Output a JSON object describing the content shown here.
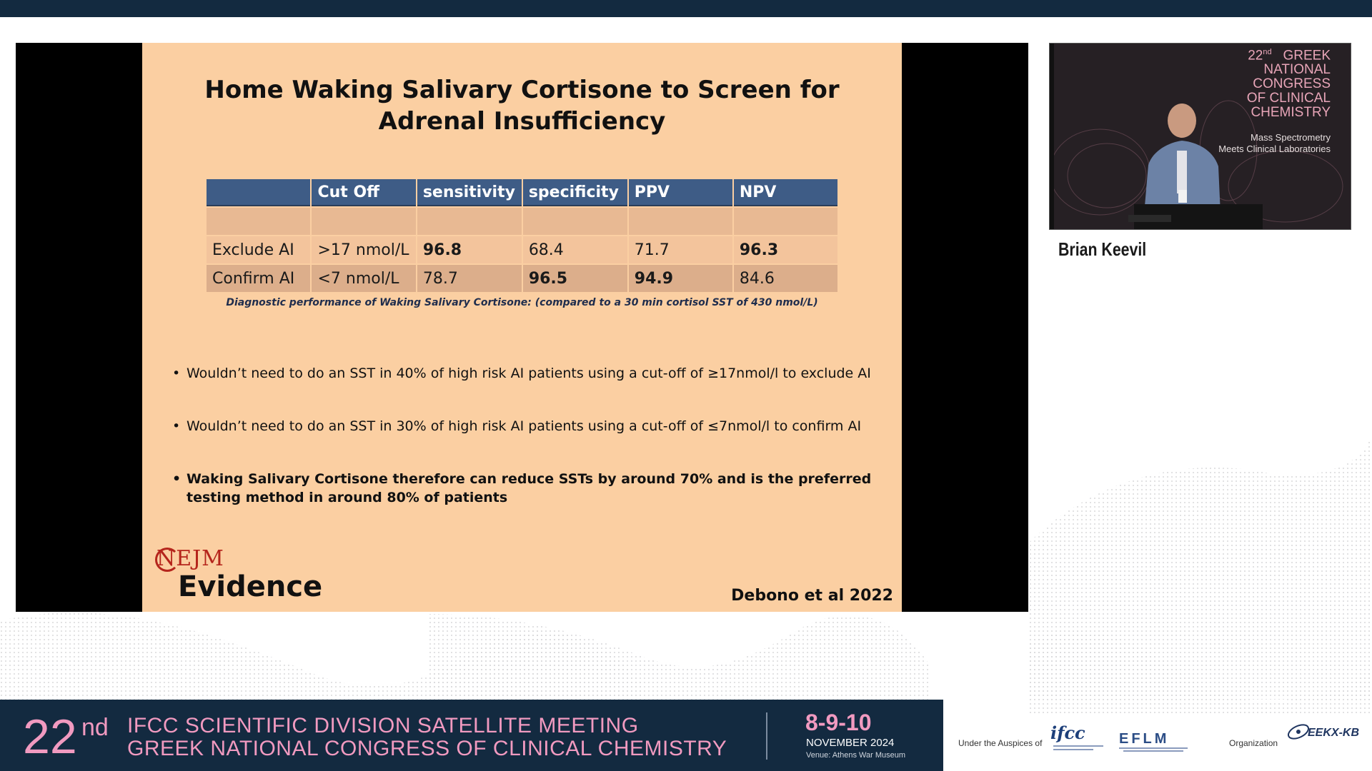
{
  "slide": {
    "title_line1": "Home Waking Salivary Cortisone to Screen for",
    "title_line2": "Adrenal Insufficiency",
    "table": {
      "headers": [
        "",
        "Cut Off",
        "sensitivity",
        "specificity",
        "PPV",
        "NPV"
      ],
      "rows": [
        [
          "Exclude AI",
          ">17 nmol/L",
          "96.8",
          "68.4",
          "71.7",
          "96.3"
        ],
        [
          "Confirm AI",
          "<7 nmol/L",
          "78.7",
          "96.5",
          "94.9",
          "84.6"
        ]
      ]
    },
    "caption": "Diagnostic performance of Waking Salivary Cortisone: (compared to a 30 min cortisol  SST of 430 nmol/L)",
    "bullets": [
      "Wouldn’t need to do an SST in 40% of high risk AI patients using a cut-off of ≥17nmol/l to exclude AI",
      "Wouldn’t need to do an SST in 30% of high risk AI patients using a cut-off of ≤7nmol/l to confirm AI",
      "Waking Salivary Cortisone therefore can reduce SSTs by around 70% and is the preferred testing method in around 80% of patients"
    ],
    "logo_nejm": "NEJM",
    "logo_evidence": "Evidence",
    "citation": "Debono et al 2022"
  },
  "video": {
    "congress_num": "22",
    "congress_sup": "nd",
    "congress_lines": [
      "GREEK",
      "NATIONAL",
      "CONGRESS",
      "OF CLINICAL",
      "CHEMISTRY"
    ],
    "subtitle_line1": "Mass Spectrometry",
    "subtitle_line2": "Meets Clinical Laboratories"
  },
  "speaker_name": "Brian Keevil",
  "banner": {
    "number": "22",
    "suffix": "nd",
    "line1": "IFCC SCIENTIFIC DIVISION SATELLITE MEETING",
    "line2": "GREEK NATIONAL CONGRESS OF CLINICAL CHEMISTRY",
    "dates": "8-9-10",
    "month": "NOVEMBER 2024",
    "venue": "Venue: Athens War Museum"
  },
  "footer": {
    "auspices_label": "Under the Auspices of",
    "logo_ifcc": "ifcc",
    "logo_eflm": "EFLM",
    "organization_label": "Organization",
    "logo_ekk": "EEKX-KB"
  },
  "colors": {
    "slide_bg": "#fbcfa2",
    "table_header": "#3e5c86",
    "banner_bg": "#132a40",
    "banner_accent": "#f19ac0"
  }
}
